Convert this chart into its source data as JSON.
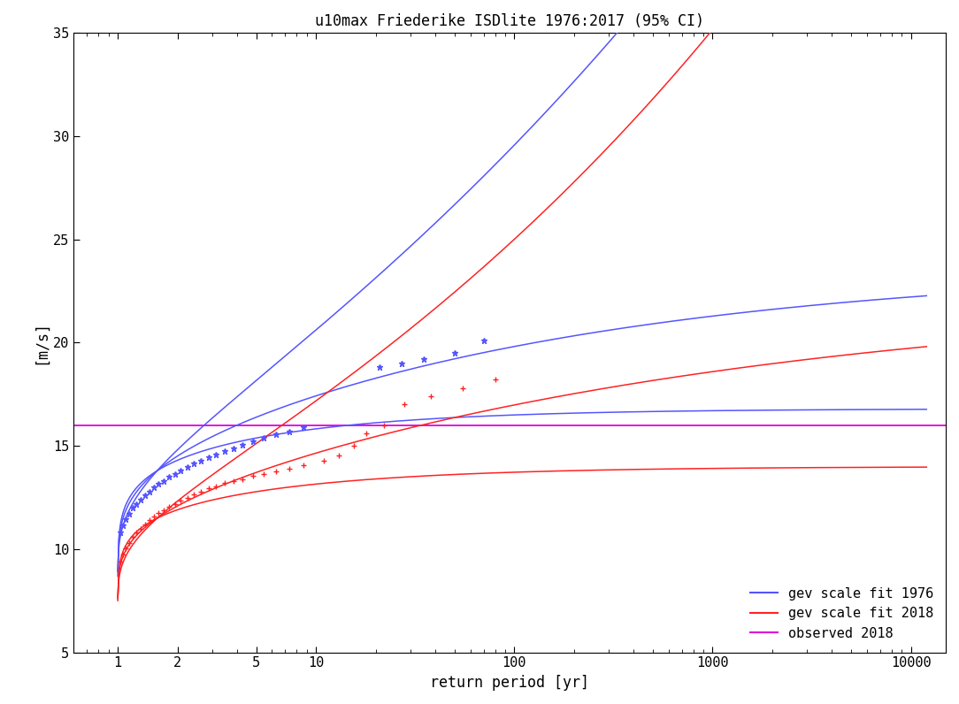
{
  "title": "u10max Friederike ISDlite 1976:2017 (95% CI)",
  "xlabel": "return period [yr]",
  "ylabel": "[m/s]",
  "ylim": [
    5,
    35
  ],
  "xlim": [
    0.6,
    15000
  ],
  "observed_value": 16.0,
  "observed_color": "#dd00dd",
  "gev1976_color": "#5555ff",
  "gev2018_color": "#ff2222",
  "background_color": "#ffffff",
  "legend_labels": [
    "gev scale fit 1976",
    "gev scale fit 2018",
    "observed 2018"
  ],
  "title_fontsize": 12,
  "axis_fontsize": 12,
  "tick_fontsize": 11,
  "legend_fontsize": 11,
  "gev1976_center": {
    "mu": 13.8,
    "sigma": 2.0,
    "xi": -0.2
  },
  "gev1976_upper": {
    "mu": 13.8,
    "sigma": 2.7,
    "xi": 0.1
  },
  "gev1976_lower": {
    "mu": 13.8,
    "sigma": 1.5,
    "xi": -0.5
  },
  "gev2018_center": {
    "mu": 11.5,
    "sigma": 1.65,
    "xi": -0.15
  },
  "gev2018_upper": {
    "mu": 11.5,
    "sigma": 2.2,
    "xi": 0.12
  },
  "gev2018_lower": {
    "mu": 11.5,
    "sigma": 1.2,
    "xi": -0.48
  },
  "blue_data_x": [
    1.03,
    1.06,
    1.1,
    1.14,
    1.19,
    1.24,
    1.3,
    1.37,
    1.44,
    1.52,
    1.61,
    1.71,
    1.82,
    1.94,
    2.08,
    2.24,
    2.42,
    2.63,
    2.87,
    3.14,
    3.46,
    3.83,
    4.27,
    4.8,
    5.45,
    6.27,
    7.31,
    8.65,
    21.0,
    27.0,
    35.0,
    50.0,
    70.0
  ],
  "blue_data_y": [
    10.8,
    11.15,
    11.45,
    11.7,
    12.0,
    12.2,
    12.4,
    12.6,
    12.8,
    13.0,
    13.15,
    13.3,
    13.5,
    13.65,
    13.8,
    14.0,
    14.15,
    14.3,
    14.45,
    14.6,
    14.75,
    14.9,
    15.05,
    15.2,
    15.4,
    15.55,
    15.7,
    15.9,
    18.8,
    19.0,
    19.2,
    19.5,
    20.1
  ],
  "red_data_x": [
    1.03,
    1.06,
    1.1,
    1.14,
    1.19,
    1.24,
    1.3,
    1.37,
    1.44,
    1.52,
    1.61,
    1.71,
    1.82,
    1.94,
    2.08,
    2.24,
    2.42,
    2.63,
    2.87,
    3.14,
    3.46,
    3.83,
    4.27,
    4.8,
    5.45,
    6.27,
    7.31,
    8.65,
    11.0,
    13.0,
    15.5,
    18.0,
    22.0,
    28.0,
    38.0,
    55.0,
    80.0
  ],
  "red_data_y": [
    9.4,
    9.75,
    10.05,
    10.3,
    10.6,
    10.8,
    11.0,
    11.2,
    11.4,
    11.6,
    11.75,
    11.9,
    12.05,
    12.2,
    12.35,
    12.5,
    12.65,
    12.8,
    12.95,
    13.05,
    13.2,
    13.3,
    13.4,
    13.55,
    13.65,
    13.75,
    13.9,
    14.05,
    14.3,
    14.55,
    15.0,
    15.6,
    16.0,
    17.0,
    17.4,
    17.8,
    18.2
  ]
}
